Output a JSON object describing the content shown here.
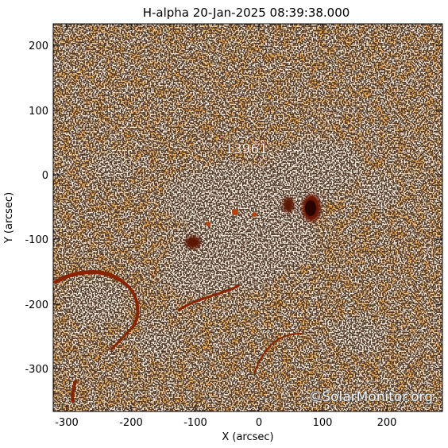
{
  "title": "H-alpha 20-Jan-2025 08:39:38.000",
  "xlabel": "X (arcsec)",
  "ylabel": "Y (arcsec)",
  "x_ticks": [
    "-300",
    "-200",
    "-100",
    "0",
    "100",
    "200"
  ],
  "y_ticks": [
    "200",
    "100",
    "0",
    "-100",
    "-200",
    "-300"
  ],
  "active_region": "13961",
  "watermark": "©SolarMonitor.org",
  "colors": {
    "background_orange": "#e8701a",
    "plage_white": "#fbefe2",
    "sunspot": "#3a0a00",
    "filament": "#7a1c00"
  }
}
